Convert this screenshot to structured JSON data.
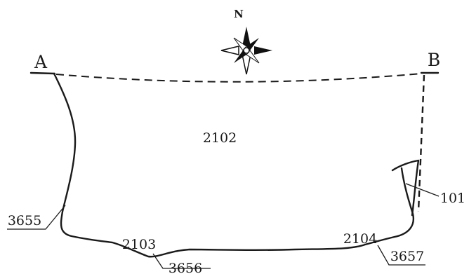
{
  "compass": {
    "label": "N"
  },
  "points": {
    "a": "A",
    "b": "B"
  },
  "contexts": {
    "main": "2102",
    "c2103": "2103",
    "c2104": "2104",
    "c3655": "3655",
    "c3656": "3656",
    "c3657": "3657",
    "c101": "101"
  }
}
